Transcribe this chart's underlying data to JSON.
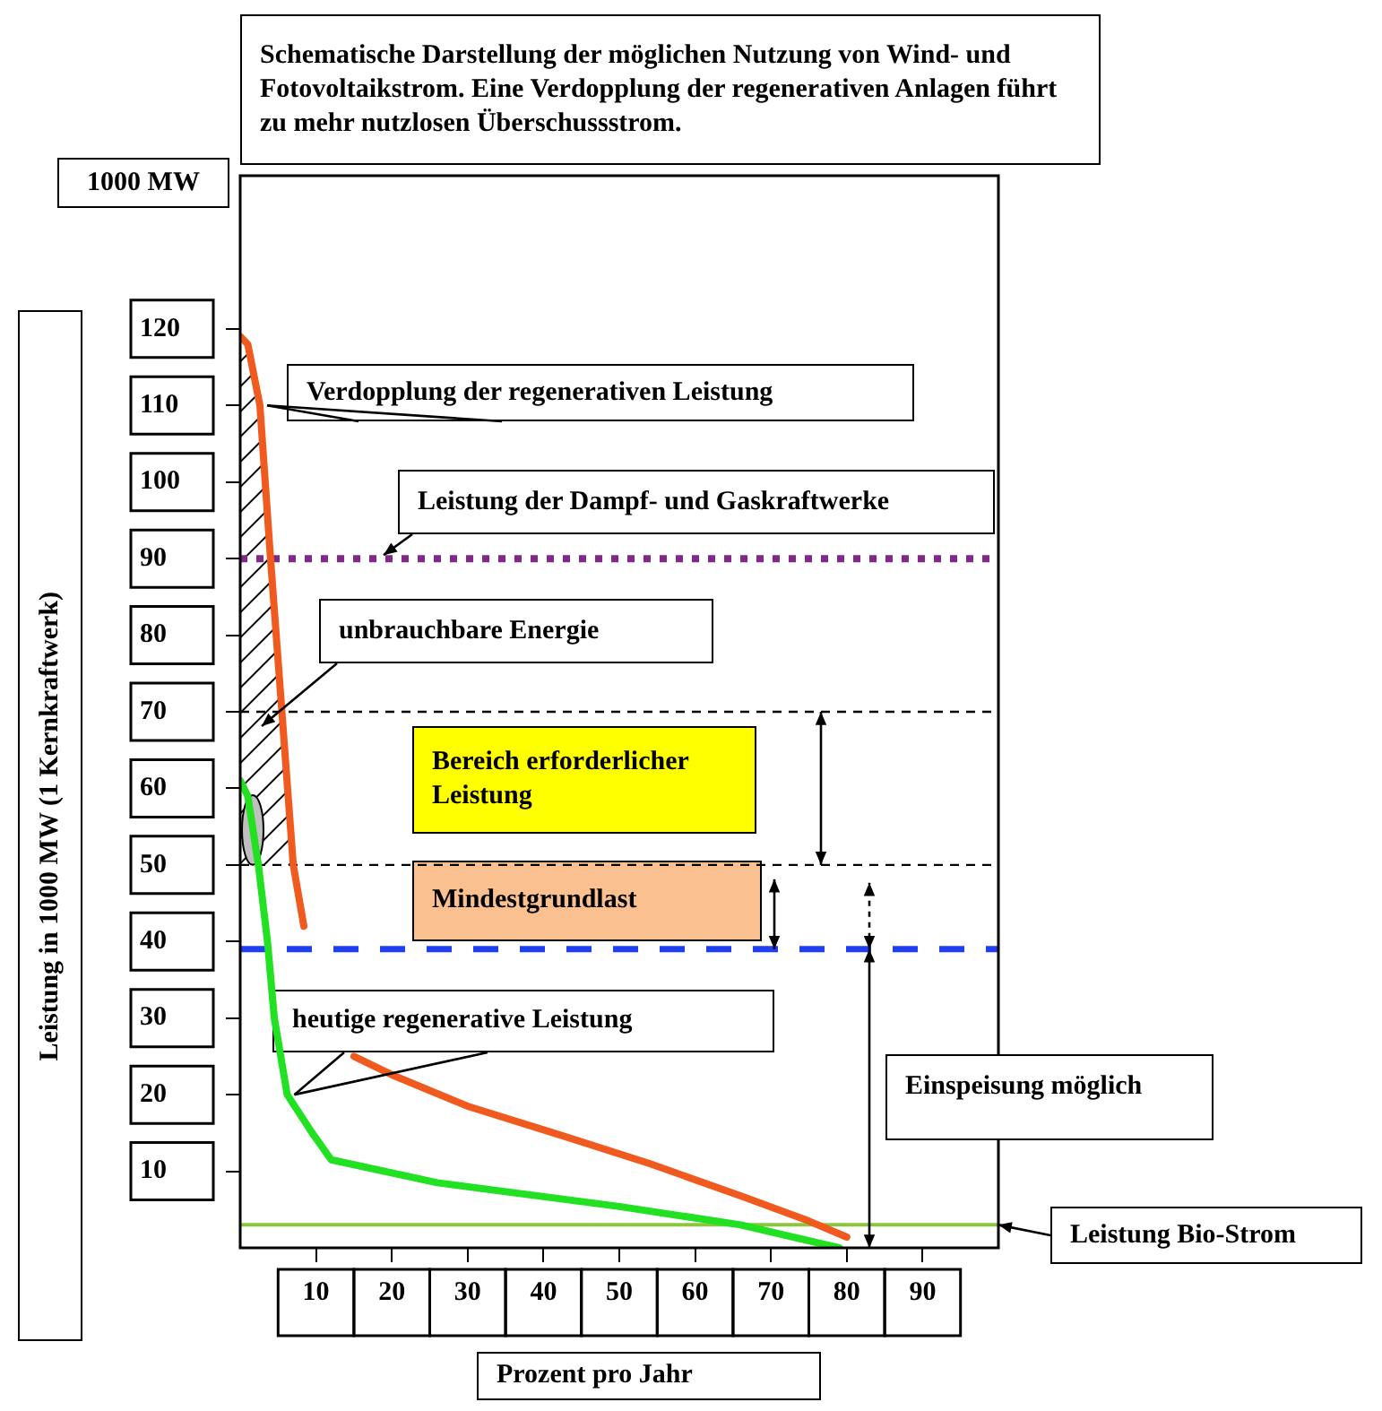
{
  "chart_data": {
    "type": "line",
    "title": "Schematische Darstellung der möglichen Nutzung von Wind- und Fotovoltaikstrom. Eine Verdopplung der regenerativen Anlagen führt zu mehr nutzlosen Überschussstrom.",
    "xlabel": "Prozent pro Jahr",
    "ylabel": "Leistung in 1000 MW (1 Kernkraftwerk)",
    "xlim": [
      0,
      100
    ],
    "xticks": [
      10,
      20,
      30,
      40,
      50,
      60,
      70,
      80,
      90
    ],
    "ylim": [
      0,
      140
    ],
    "yticks": [
      10,
      20,
      30,
      40,
      50,
      60,
      70,
      80,
      90,
      100,
      110,
      120
    ],
    "grid": false,
    "legend": false,
    "marker": "none",
    "series": [
      {
        "name": "Verdopplung der regenerativen Leistung",
        "color": "#f05a1e",
        "x": [
          0,
          1,
          2.6,
          4,
          5.5,
          7,
          8.4,
          11.7,
          15,
          20,
          30,
          42,
          54,
          66,
          75,
          80
        ],
        "values": [
          119,
          118,
          110,
          90,
          70,
          50,
          42,
          null,
          25,
          22.6,
          18.5,
          14.8,
          11,
          6.8,
          3.5,
          1.4
        ]
      },
      {
        "name": "heutige regenerative Leistung",
        "color": "#22e022",
        "x": [
          0,
          1,
          2.4,
          3.6,
          4.5,
          6.2,
          9.5,
          12,
          26,
          50,
          66,
          79
        ],
        "values": [
          61,
          59,
          50,
          40,
          30,
          20,
          15,
          11.5,
          8.5,
          5.4,
          3,
          0
        ]
      }
    ],
    "ref_lines": [
      {
        "axis": "y",
        "value": 90,
        "label": "Leistung der Dampf- und Gaskraftwerke",
        "color": "#7f2a86",
        "line_style": "dotted"
      },
      {
        "axis": "y",
        "value": 70,
        "color": "#000000",
        "line_style": "dashed"
      },
      {
        "axis": "y",
        "value": 50,
        "color": "#000000",
        "line_style": "dashed"
      },
      {
        "axis": "y",
        "value": 39,
        "color": "#1f3ff0",
        "line_style": "dashed"
      },
      {
        "axis": "y",
        "value": 3,
        "label": "Leistung Bio-Strom",
        "color": "#8cc63f",
        "line_style": "solid"
      }
    ],
    "annotations": [
      "1000 MW",
      "unbrauchbare Energie",
      "Bereich erforderlicher Leistung",
      "Mindestgrundlast",
      "Einspeisung möglich"
    ]
  }
}
